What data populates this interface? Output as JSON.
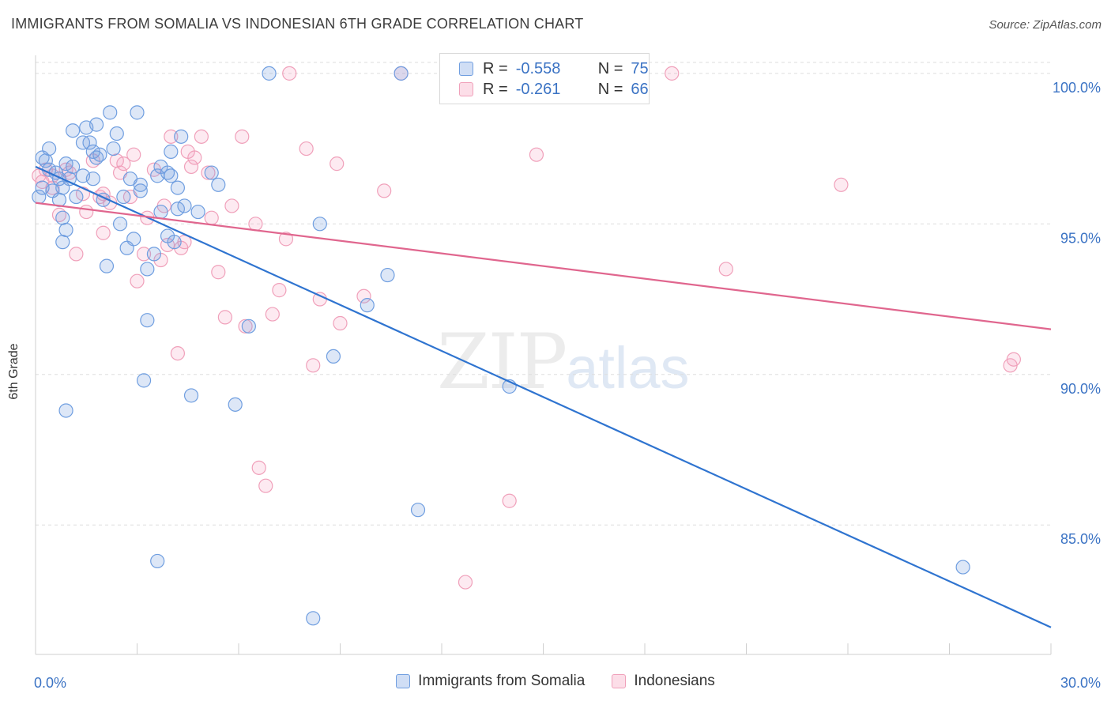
{
  "title": "IMMIGRANTS FROM SOMALIA VS INDONESIAN 6TH GRADE CORRELATION CHART",
  "source": "Source: ZipAtlas.com",
  "watermark": {
    "zip": "ZIP",
    "atlas": "atlas"
  },
  "colors": {
    "somalia": "#6f9ee0",
    "somalia_fill": "rgba(120,160,225,0.25)",
    "somalia_line": "#2f74d0",
    "indonesia": "#f0a0ba",
    "indonesia_fill": "rgba(245,160,190,0.22)",
    "indonesia_line": "#e0668e",
    "tick_label": "#3b73c4",
    "grid": "#dddddd"
  },
  "stats": [
    {
      "r_label": "R =",
      "r_value": "-0.558",
      "n_label": "N =",
      "n_value": "75"
    },
    {
      "r_label": "R =",
      "r_value": "-0.261",
      "n_label": "N =",
      "n_value": "66"
    }
  ],
  "chart_data": {
    "type": "scatter",
    "title": "IMMIGRANTS FROM SOMALIA VS INDONESIAN 6TH GRADE CORRELATION CHART",
    "xlabel": "",
    "ylabel": "6th Grade",
    "xlim": [
      0,
      30
    ],
    "ylim": [
      80.7,
      100.6
    ],
    "x_tick_labels": [
      "0.0%",
      "30.0%"
    ],
    "y_ticks": [
      85,
      90,
      95,
      100
    ],
    "y_tick_labels": [
      "85.0%",
      "90.0%",
      "95.0%",
      "100.0%"
    ],
    "grid": true,
    "legend_position": "bottom",
    "series": [
      {
        "name": "Immigrants from Somalia",
        "r": -0.558,
        "n": 75,
        "trend": {
          "x": [
            0,
            30
          ],
          "y": [
            96.9,
            81.6
          ]
        },
        "points": [
          [
            0.1,
            95.9
          ],
          [
            0.2,
            96.2
          ],
          [
            0.2,
            97.2
          ],
          [
            0.3,
            97.1
          ],
          [
            0.4,
            96.8
          ],
          [
            0.4,
            97.5
          ],
          [
            0.5,
            96.1
          ],
          [
            0.6,
            96.7
          ],
          [
            0.7,
            96.5
          ],
          [
            0.7,
            95.8
          ],
          [
            0.8,
            95.2
          ],
          [
            0.8,
            94.4
          ],
          [
            0.9,
            94.8
          ],
          [
            0.8,
            96.2
          ],
          [
            0.9,
            97.0
          ],
          [
            1.0,
            96.5
          ],
          [
            1.1,
            96.9
          ],
          [
            1.1,
            98.1
          ],
          [
            1.2,
            95.9
          ],
          [
            1.4,
            96.6
          ],
          [
            1.4,
            97.7
          ],
          [
            1.5,
            98.2
          ],
          [
            1.6,
            97.7
          ],
          [
            1.7,
            96.5
          ],
          [
            1.7,
            97.4
          ],
          [
            1.8,
            98.3
          ],
          [
            1.8,
            97.2
          ],
          [
            1.9,
            97.3
          ],
          [
            2.0,
            95.8
          ],
          [
            2.1,
            93.6
          ],
          [
            2.2,
            98.7
          ],
          [
            2.3,
            97.5
          ],
          [
            2.4,
            98.0
          ],
          [
            2.5,
            95.0
          ],
          [
            2.6,
            95.9
          ],
          [
            2.7,
            94.2
          ],
          [
            2.8,
            96.5
          ],
          [
            2.9,
            94.5
          ],
          [
            3.0,
            98.7
          ],
          [
            3.1,
            96.1
          ],
          [
            3.1,
            96.3
          ],
          [
            3.2,
            89.8
          ],
          [
            3.3,
            91.8
          ],
          [
            3.3,
            93.5
          ],
          [
            3.5,
            94.0
          ],
          [
            3.6,
            83.8
          ],
          [
            3.6,
            96.6
          ],
          [
            3.7,
            96.9
          ],
          [
            3.7,
            95.4
          ],
          [
            3.9,
            94.6
          ],
          [
            3.9,
            96.7
          ],
          [
            4.0,
            96.6
          ],
          [
            4.0,
            97.4
          ],
          [
            4.1,
            94.4
          ],
          [
            4.2,
            96.2
          ],
          [
            4.2,
            95.5
          ],
          [
            4.3,
            97.9
          ],
          [
            4.4,
            95.6
          ],
          [
            4.6,
            89.3
          ],
          [
            4.8,
            95.4
          ],
          [
            5.2,
            96.7
          ],
          [
            5.4,
            96.3
          ],
          [
            5.9,
            89.0
          ],
          [
            6.3,
            91.6
          ],
          [
            6.9,
            100.0
          ],
          [
            8.2,
            81.9
          ],
          [
            8.4,
            95.0
          ],
          [
            8.8,
            90.6
          ],
          [
            9.8,
            92.3
          ],
          [
            10.4,
            93.3
          ],
          [
            10.8,
            100.0
          ],
          [
            11.3,
            85.5
          ],
          [
            14.0,
            89.6
          ],
          [
            27.4,
            83.6
          ],
          [
            0.9,
            88.8
          ]
        ]
      },
      {
        "name": "Indonesians",
        "r": -0.261,
        "n": 66,
        "trend": {
          "x": [
            0,
            30
          ],
          "y": [
            95.7,
            91.5
          ]
        },
        "points": [
          [
            0.1,
            96.6
          ],
          [
            0.2,
            96.4
          ],
          [
            0.3,
            96.8
          ],
          [
            0.5,
            96.6
          ],
          [
            0.5,
            96.2
          ],
          [
            0.7,
            95.3
          ],
          [
            0.9,
            96.8
          ],
          [
            1.0,
            96.7
          ],
          [
            1.2,
            94.0
          ],
          [
            1.4,
            96.0
          ],
          [
            1.5,
            95.4
          ],
          [
            1.7,
            97.1
          ],
          [
            1.9,
            95.9
          ],
          [
            2.0,
            96.0
          ],
          [
            2.0,
            94.7
          ],
          [
            2.2,
            95.7
          ],
          [
            2.4,
            97.1
          ],
          [
            2.5,
            96.7
          ],
          [
            2.6,
            97.0
          ],
          [
            2.8,
            95.9
          ],
          [
            2.9,
            97.3
          ],
          [
            3.0,
            93.1
          ],
          [
            3.2,
            94.0
          ],
          [
            3.3,
            95.2
          ],
          [
            3.5,
            96.8
          ],
          [
            3.7,
            93.8
          ],
          [
            3.8,
            95.6
          ],
          [
            3.9,
            94.3
          ],
          [
            4.0,
            97.9
          ],
          [
            4.2,
            90.7
          ],
          [
            4.3,
            94.2
          ],
          [
            4.4,
            94.4
          ],
          [
            4.5,
            97.4
          ],
          [
            4.6,
            96.9
          ],
          [
            4.7,
            97.2
          ],
          [
            4.9,
            97.9
          ],
          [
            5.1,
            96.7
          ],
          [
            5.2,
            95.2
          ],
          [
            5.4,
            93.4
          ],
          [
            5.6,
            91.9
          ],
          [
            5.8,
            95.6
          ],
          [
            6.1,
            97.9
          ],
          [
            6.2,
            91.6
          ],
          [
            6.5,
            95.0
          ],
          [
            6.6,
            86.9
          ],
          [
            6.8,
            86.3
          ],
          [
            7.0,
            92.0
          ],
          [
            7.2,
            92.8
          ],
          [
            7.4,
            94.5
          ],
          [
            7.5,
            100.0
          ],
          [
            8.0,
            97.5
          ],
          [
            8.2,
            90.3
          ],
          [
            8.4,
            92.5
          ],
          [
            8.9,
            97.0
          ],
          [
            9.0,
            91.7
          ],
          [
            9.7,
            92.6
          ],
          [
            10.3,
            96.1
          ],
          [
            10.8,
            100.0
          ],
          [
            14.0,
            85.8
          ],
          [
            14.8,
            97.3
          ],
          [
            12.7,
            83.1
          ],
          [
            18.8,
            100.0
          ],
          [
            20.4,
            93.5
          ],
          [
            23.8,
            96.3
          ],
          [
            28.8,
            90.3
          ],
          [
            28.9,
            90.5
          ]
        ]
      }
    ]
  }
}
